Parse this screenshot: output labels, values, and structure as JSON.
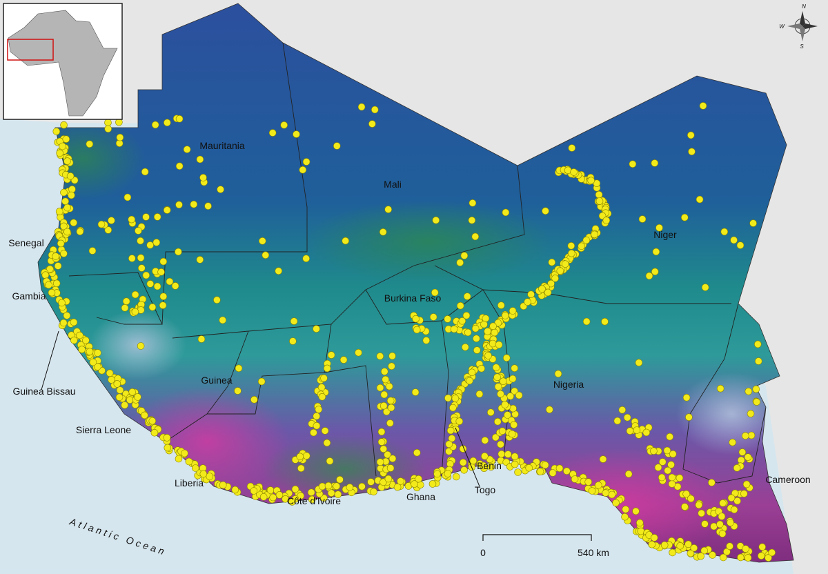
{
  "map": {
    "countries": [
      "Mauritania",
      "Mali",
      "Niger",
      "Senegal",
      "Gambia",
      "Burkina Faso",
      "Guinea Bissau",
      "Guinea",
      "Nigeria",
      "Sierra Leone",
      "Benin",
      "Cameroon",
      "Liberia",
      "Côte d'Ivoire",
      "Ghana",
      "Togo"
    ],
    "ocean_label": "Atlantic Ocean",
    "scale_bar": {
      "start": "0",
      "end": "540 km"
    },
    "compass": {
      "north": "N",
      "west": "W",
      "south": "S"
    }
  }
}
